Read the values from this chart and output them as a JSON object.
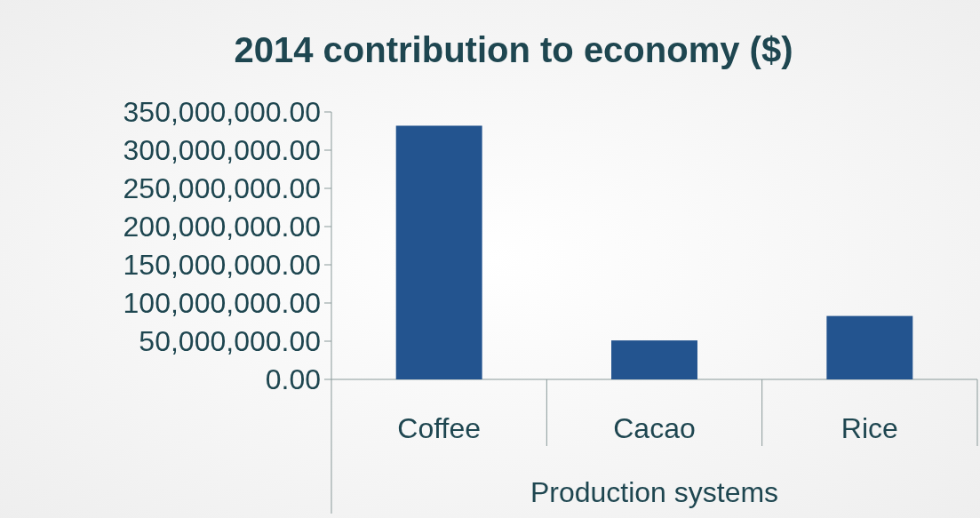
{
  "chart_data": {
    "type": "bar",
    "title": "2014 contribution to economy ($)",
    "xlabel": "Production systems",
    "categories": [
      "Coffee",
      "Cacao",
      "Rice"
    ],
    "values": [
      332000000,
      51000000,
      83000000
    ],
    "color": "#23548f",
    "ylim": [
      0,
      350000000
    ],
    "yticks": [
      {
        "value": 0,
        "label": "0.00"
      },
      {
        "value": 50000000,
        "label": "50,000,000.00"
      },
      {
        "value": 100000000,
        "label": "100,000,000.00"
      },
      {
        "value": 150000000,
        "label": "150,000,000.00"
      },
      {
        "value": 200000000,
        "label": "200,000,000.00"
      },
      {
        "value": 250000000,
        "label": "250,000,000.00"
      },
      {
        "value": 300000000,
        "label": "300,000,000.00"
      },
      {
        "value": 350000000,
        "label": "350,000,000.00"
      }
    ],
    "grid": false
  }
}
